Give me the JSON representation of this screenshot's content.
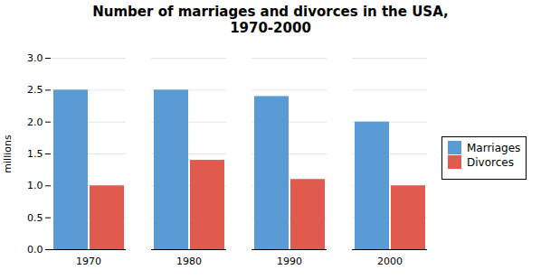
{
  "chart_data": {
    "type": "bar",
    "title": "Number of marriages and divorces in the USA,\n1970-2000",
    "ylabel": "millions",
    "categories": [
      "1970",
      "1980",
      "1990",
      "2000"
    ],
    "series": [
      {
        "name": "Marriages",
        "color": "#5B9BD5",
        "values": [
          2.5,
          2.5,
          2.4,
          2.0
        ]
      },
      {
        "name": "Divorces",
        "color": "#E05A4E",
        "values": [
          1.0,
          1.4,
          1.1,
          1.0
        ]
      }
    ],
    "ylim": [
      0,
      3
    ],
    "yticks": [
      {
        "value": 0,
        "label": "0.0"
      },
      0.5,
      {
        "value": 1.0,
        "label": "1.0"
      },
      1.5,
      {
        "value": 2.0,
        "label": "2.0"
      },
      2.5,
      {
        "value": 3.0,
        "label": "3.0"
      }
    ],
    "grid": true,
    "legend": "right"
  }
}
